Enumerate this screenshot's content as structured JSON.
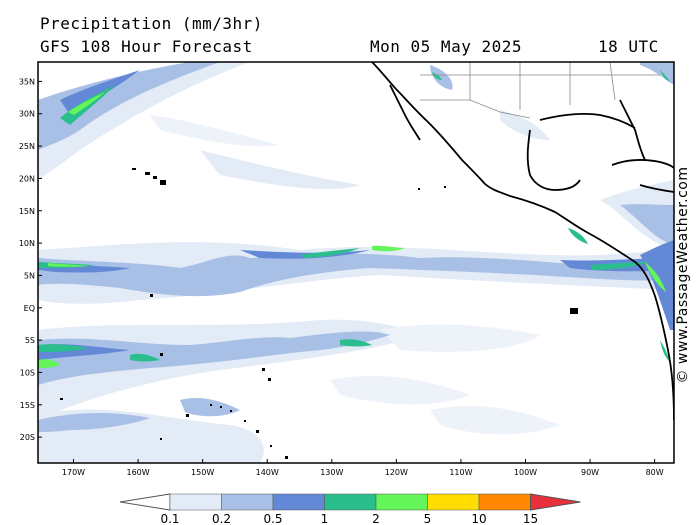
{
  "header": {
    "title": "Precipitation (mm/3hr)",
    "model": "GFS 108 Hour Forecast",
    "date": "Mon 05 May 2025",
    "time": "18 UTC"
  },
  "copyright": "© www.PassageWeather.com",
  "map": {
    "lat_labels": [
      "35N",
      "30N",
      "25N",
      "20N",
      "15N",
      "10N",
      "5N",
      "EQ",
      "5S",
      "10S",
      "15S",
      "20S"
    ],
    "lon_labels": [
      "170W",
      "160W",
      "150W",
      "140W",
      "130W",
      "120W",
      "110W",
      "100W",
      "90W",
      "80W"
    ],
    "lat_range": [
      -24,
      38
    ],
    "lon_range": [
      -175.5,
      -77
    ]
  },
  "colorbar": {
    "labels": [
      "0.1",
      "0.2",
      "0.5",
      "1",
      "2",
      "5",
      "10",
      "15"
    ],
    "colors": [
      "#ffffff",
      "#e3ebf6",
      "#a9c0e6",
      "#6389d6",
      "#29be8c",
      "#63f55a",
      "#ffdd00",
      "#ff8800",
      "#e8303c"
    ]
  }
}
